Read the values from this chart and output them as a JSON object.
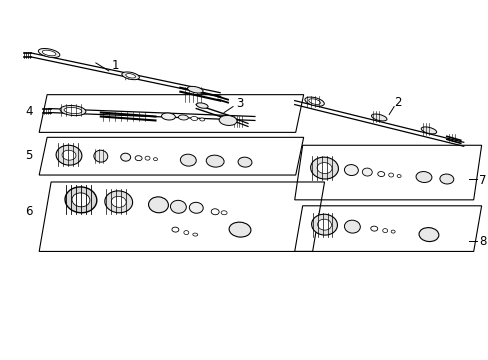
{
  "bg_color": "#ffffff",
  "line_color": "#000000",
  "fig_width": 4.89,
  "fig_height": 3.6,
  "dpi": 100,
  "labels": {
    "1": "1",
    "2": "2",
    "3": "3",
    "4": "4",
    "5": "5",
    "6": "6",
    "7": "7",
    "8": "8"
  }
}
